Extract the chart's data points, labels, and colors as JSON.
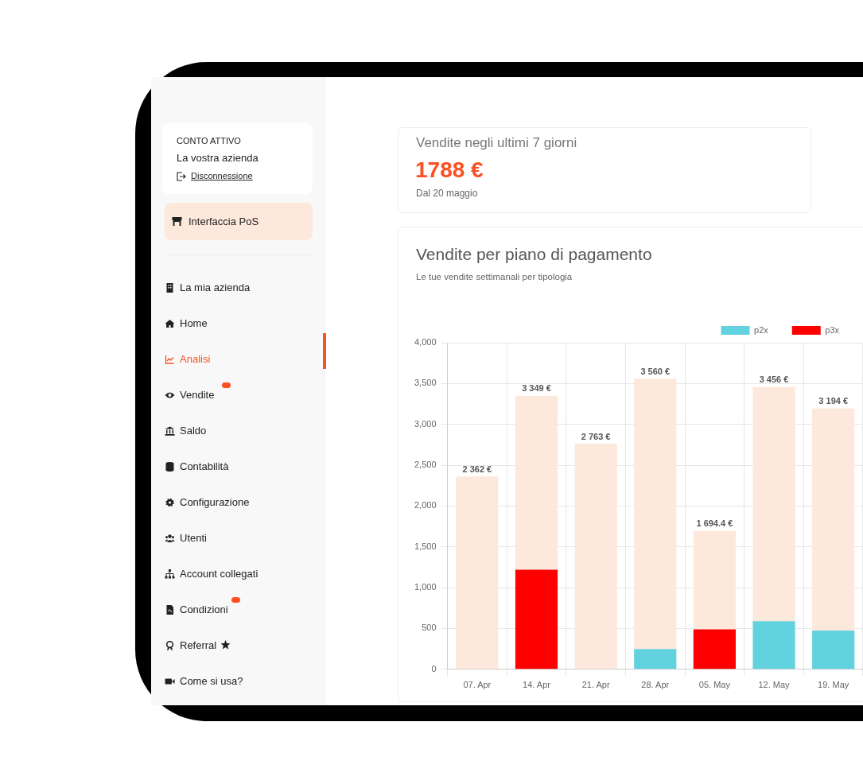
{
  "chart_data": [
    {
      "type": "other",
      "annotations": [
        "CONTO ATTIVO",
        "La vostra azienda",
        "Disconnessione",
        "Interfaccia PoS",
        "La mia azienda",
        "Home",
        "Analisi",
        "Vendite",
        "Saldo",
        "Contabilità",
        "Configurazione",
        "Utenti",
        "Account collegati",
        "Condizioni",
        "Referral",
        "Come si usa?"
      ]
    },
    {
      "type": "other",
      "title": "Vendite negli ultimi 7 giorni",
      "annotations": [
        "1788 €",
        "Dal 20 maggio"
      ]
    },
    {
      "type": "bar",
      "title": "Vendite per piano di pagamento",
      "subtitle": "Le tue vendite settimanali per tipologia",
      "categories": [
        "07. Apr",
        "14. Apr",
        "21. Apr",
        "28. Apr",
        "05. May",
        "12. May",
        "19. May"
      ],
      "stacked": true,
      "series": [
        {
          "name": "p2x",
          "color": "#62d2de",
          "values": [
            0,
            0,
            0,
            250,
            0,
            590,
            475
          ]
        },
        {
          "name": "p3x",
          "color": "#ff0000",
          "values": [
            0,
            1220,
            0,
            0,
            490,
            0,
            0
          ]
        },
        {
          "color": "#fde8dc",
          "values": [
            2362,
            2129,
            2763,
            3310,
            1204.4,
            2866,
            2719
          ]
        }
      ],
      "totals": [
        "2 362 €",
        "3 349 €",
        "2 763 €",
        "3 560 €",
        "1 694.4 €",
        "3 456 €",
        "3 194 €"
      ],
      "ylim": [
        0,
        4000
      ],
      "yticks": [
        0,
        {
          "value": 500,
          "label": "500"
        },
        {
          "value": 1000,
          "label": "1,000"
        },
        {
          "value": 1500,
          "label": "1,500"
        },
        {
          "value": 2000,
          "label": "2,000"
        },
        {
          "value": 2500,
          "label": "2,500"
        },
        {
          "value": 3000,
          "label": "3,000"
        },
        {
          "value": 3500,
          "label": "3,500"
        },
        {
          "value": 4000,
          "label": "4,000"
        }
      ],
      "grid": true,
      "legend": "top right"
    }
  ]
}
